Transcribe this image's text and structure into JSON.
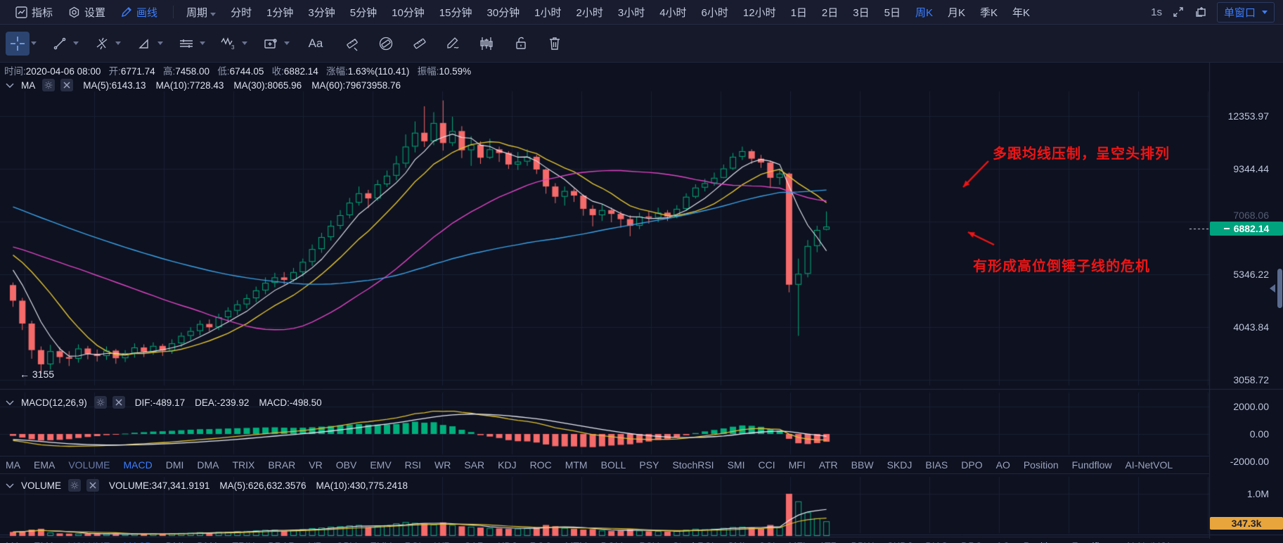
{
  "top_toolbar": {
    "indicators_label": "指标",
    "settings_label": "设置",
    "draw_label": "画线",
    "period_label": "周期",
    "timeframes": [
      "分时",
      "1分钟",
      "3分钟",
      "5分钟",
      "10分钟",
      "15分钟",
      "30分钟",
      "1小时",
      "2小时",
      "3小时",
      "4小时",
      "6小时",
      "12小时",
      "1日",
      "2日",
      "3日",
      "5日",
      "周K",
      "月K",
      "季K",
      "年K"
    ],
    "active_timeframe": "周K",
    "interval_badge": "1s",
    "window_mode": "单窗口"
  },
  "ohlc_bar": {
    "time_label": "时间:",
    "time": "2020-04-06 08:00",
    "open_label": "开:",
    "open": "6771.74",
    "high_label": "高:",
    "high": "7458.00",
    "low_label": "低:",
    "low": "6744.05",
    "close_label": "收:",
    "close": "6882.14",
    "change_label": "涨幅:",
    "change": "1.63%(110.41)",
    "amplitude_label": "振幅:",
    "amplitude": "10.59%"
  },
  "ma_header": {
    "name": "MA",
    "ma5": "MA(5):6143.13",
    "ma10": "MA(10):7728.43",
    "ma30": "MA(30):8065.96",
    "ma60": "MA(60):79673958.76"
  },
  "macd_header": {
    "name": "MACD(12,26,9)",
    "dif": "DIF:-489.17",
    "dea": "DEA:-239.92",
    "macd": "MACD:-498.50"
  },
  "volume_header": {
    "name": "VOLUME",
    "volume": "VOLUME:347,341.9191",
    "ma5": "MA(5):626,632.3576",
    "ma10": "MA(10):430,775.2418"
  },
  "tabs": {
    "items": [
      "MA",
      "EMA",
      "VOLUME",
      "MACD",
      "DMI",
      "DMA",
      "TRIX",
      "BRAR",
      "VR",
      "OBV",
      "EMV",
      "RSI",
      "WR",
      "SAR",
      "KDJ",
      "ROC",
      "MTM",
      "BOLL",
      "PSY",
      "StochRSI",
      "SMI",
      "CCI",
      "MFI",
      "ATR",
      "BBW",
      "SKDJ",
      "BIAS",
      "DPO",
      "AO",
      "Position",
      "Fundflow",
      "AI-NetVOL"
    ],
    "active": "MACD",
    "secondary": "VOLUME"
  },
  "annotations": {
    "note1": "多跟均线压制，呈空头排列",
    "note2": "有形成高位倒锤子线的危机",
    "low_label": "← 3155",
    "price_tag": "6882.14",
    "price_tag_faded": "7068.06",
    "volume_tag": "347.3k"
  },
  "colors": {
    "up": "#00b07c",
    "down": "#f56a6a",
    "ma5": "#e8eaf2",
    "ma10": "#e3c330",
    "ma30": "#e044c4",
    "ma60": "#3aa3e8",
    "grid": "#1b2033",
    "axis_border": "#242b44",
    "divider": "#242b44",
    "accent_blue": "#3d7eff",
    "annotation_red": "#ef1515",
    "price_tag_bg": "#00a37e",
    "volume_tag_bg": "#e8a53c"
  },
  "chart_data": {
    "type": "candlestick",
    "timeframe": "周K (1W)",
    "title": "BTC 周K线 对数坐标",
    "last": {
      "time": "2020-04-06 08:00",
      "open": 6771.74,
      "high": 7458.0,
      "low": 6744.05,
      "close": 6882.14,
      "change_pct": 1.63,
      "change_abs": 110.41,
      "amplitude_pct": 10.59
    },
    "y_axis": {
      "scale": "log",
      "ticks": [
        12353.97,
        9344.44,
        7068.06,
        5346.22,
        4043.84,
        3058.72
      ],
      "current_price": 6882.14,
      "marked_low": 3155
    },
    "macd_axis": {
      "ticks": [
        2000.0,
        0.0,
        -2000.0
      ],
      "dif": -489.17,
      "dea": -239.92,
      "macd": -498.5,
      "params": [
        12,
        26,
        9
      ]
    },
    "volume_axis": {
      "tick_label": "1.0M",
      "tick_value": 1000000,
      "current_volume": 347341.9191,
      "ma5": 626632.3576,
      "ma10": 430775.2418
    },
    "ma_values": {
      "ma5": 6143.13,
      "ma10": 7728.43,
      "ma30": 8065.96,
      "ma60_text": "79673958.76"
    },
    "ma_periods": [
      5,
      10,
      30,
      60
    ],
    "candles": [
      [
        5050,
        5120,
        4500,
        4650
      ],
      [
        4650,
        4720,
        3980,
        4120
      ],
      [
        4120,
        4180,
        3420,
        3580
      ],
      [
        3580,
        3650,
        3155,
        3320
      ],
      [
        3320,
        3680,
        3230,
        3560
      ],
      [
        3560,
        3640,
        3340,
        3450
      ],
      [
        3450,
        3560,
        3290,
        3420
      ],
      [
        3420,
        3690,
        3350,
        3610
      ],
      [
        3610,
        3660,
        3410,
        3510
      ],
      [
        3510,
        3590,
        3370,
        3470
      ],
      [
        3470,
        3650,
        3400,
        3570
      ],
      [
        3570,
        3600,
        3330,
        3430
      ],
      [
        3430,
        3580,
        3360,
        3520
      ],
      [
        3520,
        3710,
        3440,
        3630
      ],
      [
        3630,
        3690,
        3450,
        3550
      ],
      [
        3550,
        3730,
        3490,
        3660
      ],
      [
        3660,
        3700,
        3470,
        3570
      ],
      [
        3570,
        3790,
        3510,
        3710
      ],
      [
        3710,
        3930,
        3640,
        3860
      ],
      [
        3860,
        4040,
        3770,
        3960
      ],
      [
        3960,
        4190,
        3870,
        4110
      ],
      [
        4110,
        4210,
        3950,
        4040
      ],
      [
        4040,
        4340,
        3980,
        4260
      ],
      [
        4260,
        4490,
        4170,
        4410
      ],
      [
        4410,
        4660,
        4310,
        4560
      ],
      [
        4560,
        4810,
        4460,
        4710
      ],
      [
        4710,
        5010,
        4610,
        4910
      ],
      [
        4910,
        5260,
        4810,
        5110
      ],
      [
        5110,
        5390,
        4990,
        5260
      ],
      [
        5260,
        5410,
        5070,
        5190
      ],
      [
        5190,
        5530,
        5140,
        5410
      ],
      [
        5410,
        5810,
        5290,
        5710
      ],
      [
        5710,
        6260,
        5590,
        6110
      ],
      [
        6110,
        6660,
        5990,
        6510
      ],
      [
        6510,
        7110,
        6390,
        6910
      ],
      [
        6910,
        7510,
        6790,
        7310
      ],
      [
        7310,
        8010,
        7190,
        7810
      ],
      [
        7810,
        8510,
        7690,
        8210
      ],
      [
        8210,
        8360,
        7590,
        7990
      ],
      [
        7990,
        8810,
        7890,
        8610
      ],
      [
        8610,
        9260,
        8490,
        9010
      ],
      [
        9010,
        10010,
        8790,
        9610
      ],
      [
        9610,
        11210,
        9390,
        10510
      ],
      [
        10510,
        12010,
        10190,
        11310
      ],
      [
        11310,
        13010,
        10490,
        10810
      ],
      [
        10810,
        12610,
        10590,
        11910
      ],
      [
        11910,
        13420,
        10290,
        10710
      ],
      [
        10710,
        12310,
        10540,
        11410
      ],
      [
        11410,
        11710,
        9890,
        10310
      ],
      [
        10310,
        11110,
        9490,
        10610
      ],
      [
        10610,
        10810,
        9590,
        9910
      ],
      [
        9910,
        10960,
        9840,
        10360
      ],
      [
        10360,
        10510,
        9690,
        10160
      ],
      [
        10160,
        10260,
        9340,
        9560
      ],
      [
        9560,
        10210,
        9290,
        9710
      ],
      [
        9710,
        10360,
        9490,
        9960
      ],
      [
        9960,
        10060,
        9090,
        9310
      ],
      [
        9310,
        9360,
        8190,
        8510
      ],
      [
        8510,
        8660,
        7790,
        8060
      ],
      [
        8060,
        8510,
        7690,
        8310
      ],
      [
        8310,
        8410,
        7840,
        8110
      ],
      [
        8110,
        8160,
        7290,
        7560
      ],
      [
        7560,
        7710,
        6890,
        7310
      ],
      [
        7310,
        7760,
        7090,
        7510
      ],
      [
        7510,
        7610,
        7040,
        7360
      ],
      [
        7360,
        7460,
        6840,
        7160
      ],
      [
        7160,
        7310,
        6540,
        6910
      ],
      [
        6910,
        7410,
        6790,
        7260
      ],
      [
        7260,
        7460,
        6990,
        7210
      ],
      [
        7210,
        7610,
        7040,
        7410
      ],
      [
        7410,
        7510,
        7090,
        7260
      ],
      [
        7260,
        7710,
        7190,
        7560
      ],
      [
        7560,
        8210,
        7490,
        8060
      ],
      [
        8060,
        8610,
        7990,
        8460
      ],
      [
        8460,
        8860,
        8290,
        8660
      ],
      [
        8660,
        9160,
        8540,
        8910
      ],
      [
        8910,
        9560,
        8890,
        9360
      ],
      [
        9360,
        10160,
        9290,
        9960
      ],
      [
        9960,
        10510,
        9790,
        10260
      ],
      [
        10260,
        10360,
        9590,
        9860
      ],
      [
        9860,
        10060,
        9390,
        9660
      ],
      [
        9660,
        9760,
        8440,
        8910
      ],
      [
        8910,
        9360,
        8590,
        9110
      ],
      [
        9110,
        9160,
        4860,
        5060
      ],
      [
        5060,
        5810,
        3860,
        5360
      ],
      [
        5360,
        6410,
        5260,
        6210
      ],
      [
        6210,
        6910,
        6010,
        6760
      ],
      [
        6771.74,
        7458,
        6744.05,
        6882.14
      ]
    ],
    "volumes_k": [
      95,
      110,
      150,
      170,
      80,
      60,
      55,
      58,
      52,
      48,
      50,
      46,
      44,
      52,
      48,
      55,
      50,
      60,
      70,
      75,
      88,
      72,
      95,
      100,
      110,
      118,
      130,
      145,
      150,
      125,
      140,
      160,
      185,
      200,
      220,
      230,
      250,
      260,
      210,
      240,
      255,
      300,
      330,
      310,
      290,
      270,
      320,
      260,
      230,
      220,
      200,
      190,
      180,
      170,
      175,
      185,
      200,
      260,
      230,
      190,
      170,
      150,
      160,
      130,
      120,
      125,
      160,
      130,
      110,
      115,
      105,
      120,
      150,
      170,
      160,
      170,
      190,
      210,
      220,
      200,
      180,
      260,
      210,
      1000,
      820,
      560,
      420,
      347.3
    ],
    "ma_seed_closes": [
      13000,
      12600,
      12200,
      11800,
      11500,
      11200,
      11000,
      10800,
      10500,
      10200,
      9900,
      9700,
      9500,
      9300,
      9100,
      8900,
      8700,
      8500,
      8300,
      8100,
      8200,
      8000,
      7800,
      7600,
      7400,
      7300,
      7200,
      7100,
      7000,
      6900,
      6800,
      6700,
      6600,
      6500,
      6450,
      6400,
      6350,
      6300,
      6400,
      6350,
      6300,
      6250,
      6200,
      6300,
      6250,
      6200,
      6150,
      6100,
      6050,
      6000,
      6300,
      6400,
      6350,
      6250,
      6450,
      6400,
      6200,
      5900,
      5500,
      5100
    ],
    "legend_position": "top-left",
    "grid": true
  }
}
